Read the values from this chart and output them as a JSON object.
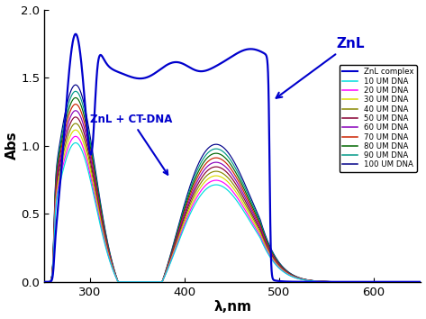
{
  "title": "",
  "xlabel": "λ,nm",
  "ylabel": "Abs",
  "xlim": [
    252,
    650
  ],
  "ylim": [
    0.0,
    2.0
  ],
  "xticks": [
    300,
    400,
    500,
    600
  ],
  "yticks": [
    0.0,
    0.5,
    1.0,
    1.5,
    2.0
  ],
  "znl_color": "#0000cc",
  "dna_colors": [
    "#00dddd",
    "#ff00ff",
    "#dddd00",
    "#888800",
    "#880033",
    "#8800bb",
    "#cc2200",
    "#006600",
    "#009988",
    "#000088"
  ],
  "legend_labels": [
    "ZnL complex",
    "10 UM DNA",
    "20 UM DNA",
    "30 UM DNA",
    "40 UM DNA",
    "50 UM DNA",
    "60 UM DNA",
    "70 UM DNA",
    "80 UM DNA",
    "90 UM DNA",
    "100 UM DNA"
  ],
  "annotation_znl": "ZnL",
  "annotation_dna": "ZnL + CT-DNA",
  "background_color": "#ffffff"
}
